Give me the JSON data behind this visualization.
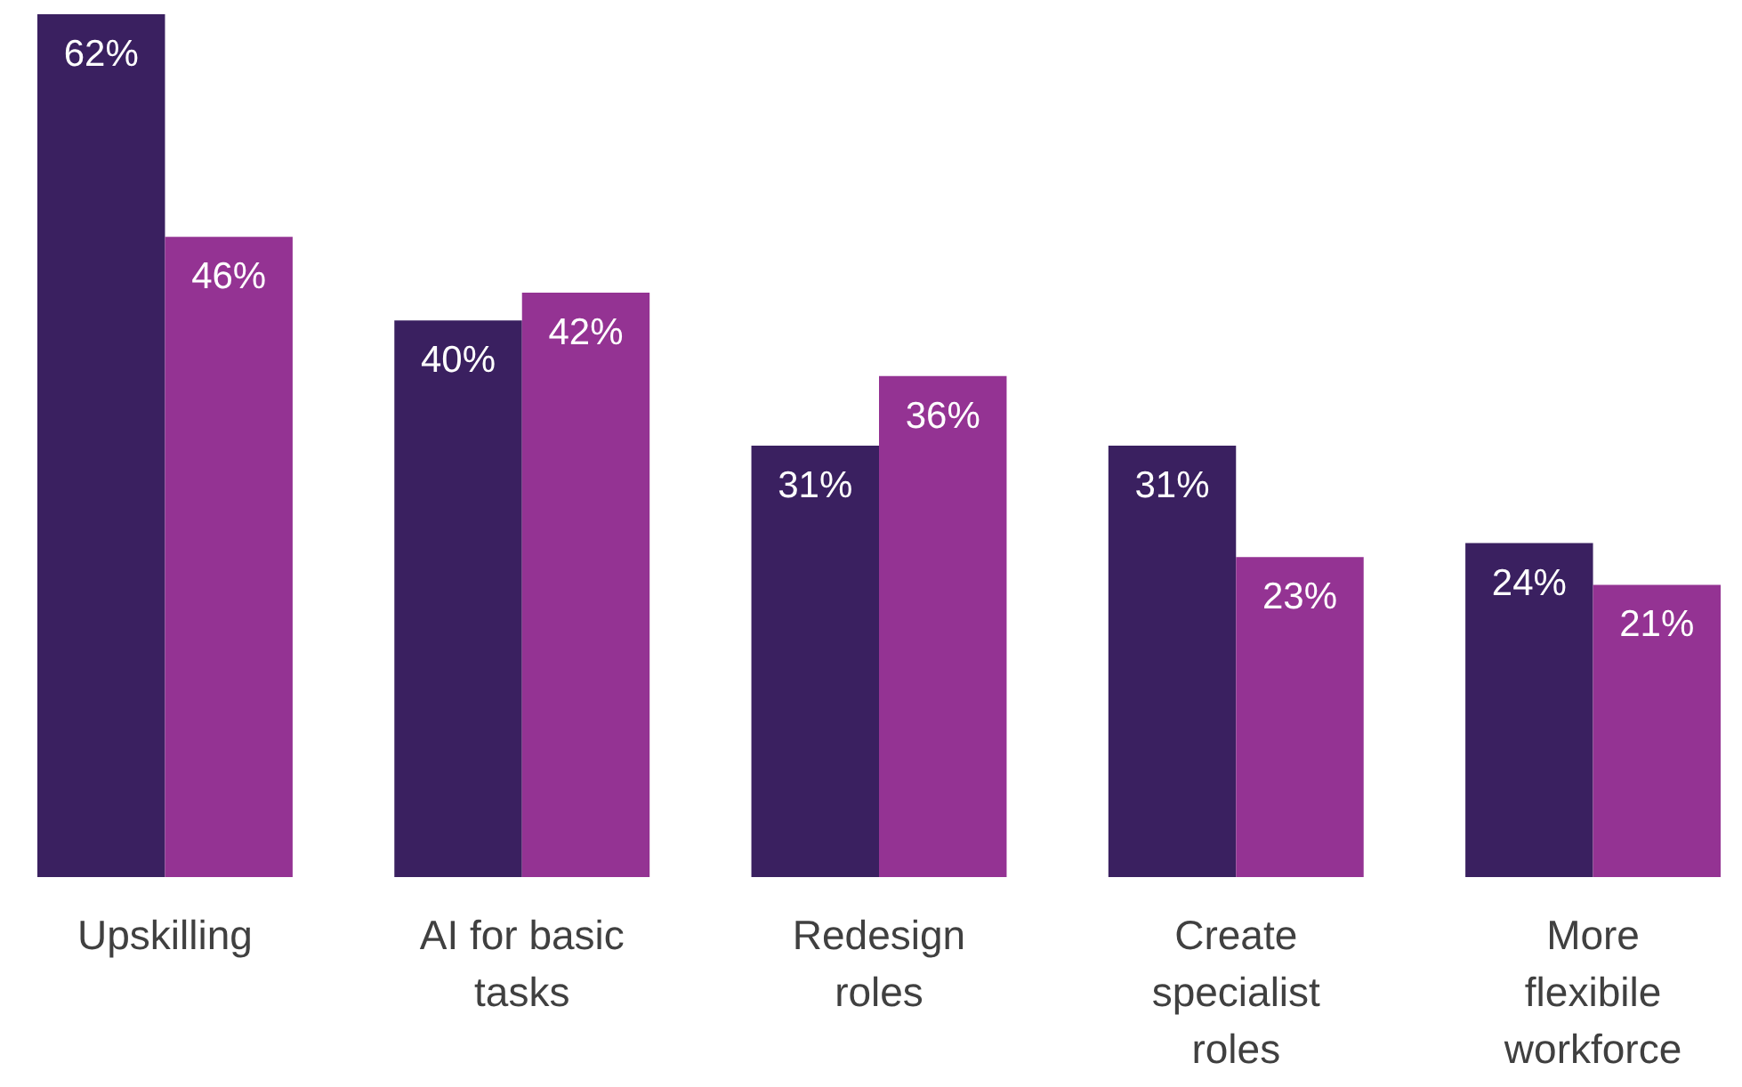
{
  "chart_data": {
    "type": "bar",
    "categories": [
      "Upskilling",
      "AI for basic tasks",
      "Redesign roles",
      "Create specialist roles",
      "More flexibile workforce"
    ],
    "series": [
      {
        "color": "#3a2060",
        "values": [
          62,
          40,
          31,
          31,
          24
        ],
        "value_labels": [
          "62%",
          "40%",
          "31%",
          "31%",
          "24%"
        ]
      },
      {
        "color": "#943393",
        "values": [
          46,
          42,
          36,
          23,
          21
        ],
        "value_labels": [
          "46%",
          "42%",
          "36%",
          "23%",
          "21%"
        ]
      }
    ]
  }
}
